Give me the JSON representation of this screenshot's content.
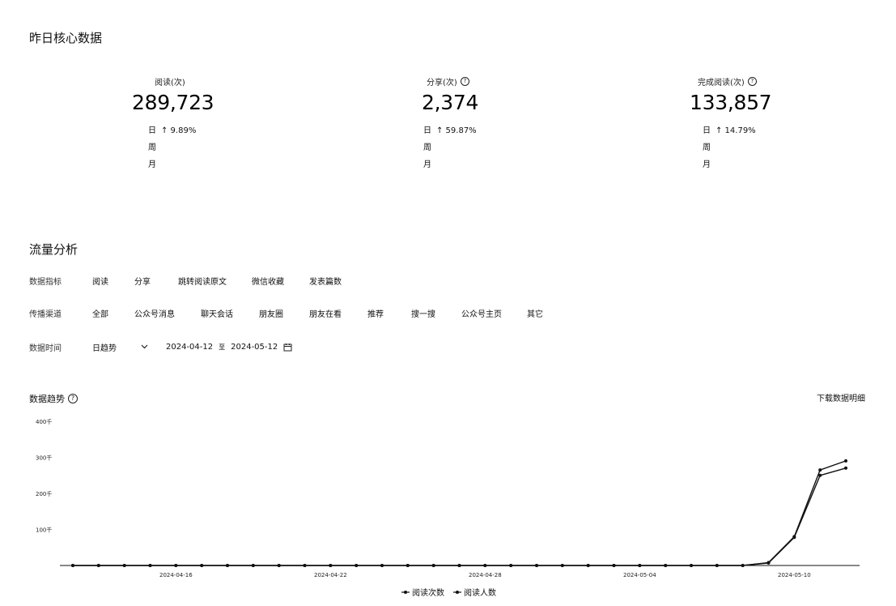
{
  "core": {
    "title": "昨日核心数据",
    "metrics": [
      {
        "label": "阅读(次)",
        "value": "289,723",
        "day_label": "日",
        "day_change": "↑ 9.89%",
        "week_label": "周",
        "month_label": "月",
        "help": false
      },
      {
        "label": "分享(次)",
        "value": "2,374",
        "day_label": "日",
        "day_change": "↑ 59.87%",
        "week_label": "周",
        "month_label": "月",
        "help": true
      },
      {
        "label": "完成阅读(次)",
        "value": "133,857",
        "day_label": "日",
        "day_change": "↑ 14.79%",
        "week_label": "周",
        "month_label": "月",
        "help": true
      }
    ]
  },
  "traffic": {
    "title": "流量分析",
    "indicator": {
      "label": "数据指标",
      "options": [
        "阅读",
        "分享",
        "跳转阅读原文",
        "微信收藏",
        "发表篇数"
      ]
    },
    "source": {
      "label": "传播渠道",
      "options": [
        "全部",
        "公众号消息",
        "聊天会话",
        "朋友圈",
        "朋友在看",
        "推荐",
        "搜一搜",
        "公众号主页",
        "其它"
      ]
    },
    "time": {
      "label": "数据时间",
      "mode": "日趋势",
      "start": "2024-04-12",
      "sep": "至",
      "end": "2024-05-12"
    }
  },
  "trend": {
    "title": "数据趋势",
    "download_label": "下载数据明细"
  },
  "chart_data": {
    "type": "line",
    "x": [
      "2024-04-12",
      "2024-04-13",
      "2024-04-14",
      "2024-04-15",
      "2024-04-16",
      "2024-04-17",
      "2024-04-18",
      "2024-04-19",
      "2024-04-20",
      "2024-04-21",
      "2024-04-22",
      "2024-04-23",
      "2024-04-24",
      "2024-04-25",
      "2024-04-26",
      "2024-04-27",
      "2024-04-28",
      "2024-04-29",
      "2024-04-30",
      "2024-05-01",
      "2024-05-02",
      "2024-05-03",
      "2024-05-04",
      "2024-05-05",
      "2024-05-06",
      "2024-05-07",
      "2024-05-08",
      "2024-05-09",
      "2024-05-10",
      "2024-05-11",
      "2024-05-12"
    ],
    "tick_labels": [
      "2024-04-16",
      "2024-04-22",
      "2024-04-28",
      "2024-05-04",
      "2024-05-10"
    ],
    "yticks": [
      "100千",
      "200千",
      "300千",
      "400千"
    ],
    "ylim": [
      0,
      400000
    ],
    "legend_position": "bottom",
    "series": [
      {
        "name": "阅读次数",
        "values": [
          0,
          0,
          0,
          0,
          0,
          0,
          0,
          0,
          0,
          0,
          0,
          0,
          0,
          0,
          0,
          0,
          0,
          0,
          0,
          0,
          0,
          0,
          0,
          0,
          0,
          0,
          0,
          8000,
          80000,
          265000,
          290000
        ]
      },
      {
        "name": "阅读人数",
        "values": [
          0,
          0,
          0,
          0,
          0,
          0,
          0,
          0,
          0,
          0,
          0,
          0,
          0,
          0,
          0,
          0,
          0,
          0,
          0,
          0,
          0,
          0,
          0,
          0,
          0,
          0,
          0,
          7000,
          78000,
          250000,
          270000
        ]
      }
    ]
  }
}
